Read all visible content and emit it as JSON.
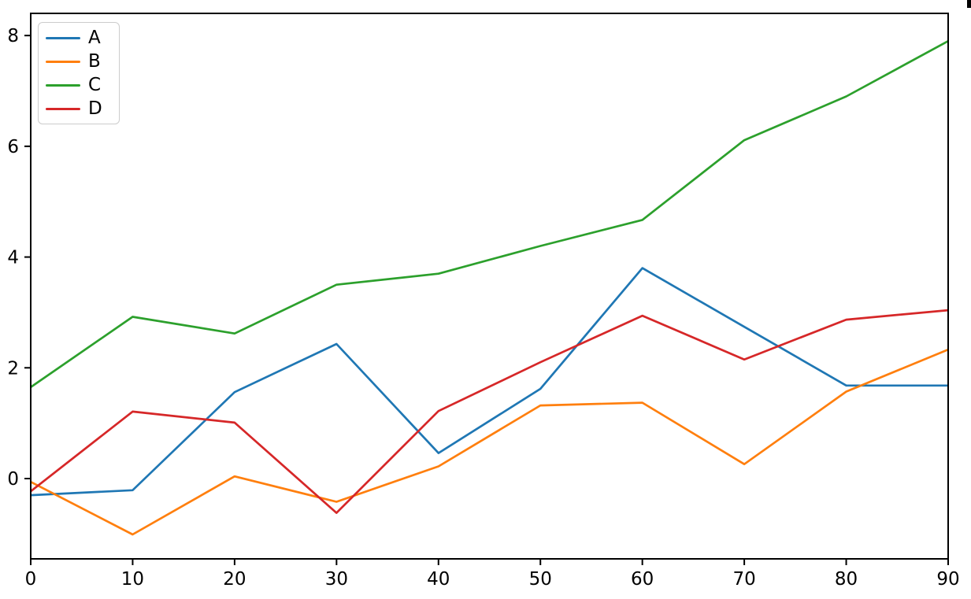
{
  "figure": {
    "background": "#ffffff"
  },
  "chart_data": {
    "type": "line",
    "title": "",
    "xlabel": "",
    "ylabel": "",
    "x": [
      0,
      10,
      20,
      30,
      40,
      50,
      60,
      70,
      80,
      90
    ],
    "series": [
      {
        "name": "A",
        "color": "#1f77b4",
        "values": [
          -0.3,
          -0.21,
          1.56,
          2.43,
          0.46,
          1.62,
          3.8,
          2.74,
          1.68,
          1.68
        ]
      },
      {
        "name": "B",
        "color": "#ff7f0e",
        "values": [
          -0.06,
          -1.01,
          0.04,
          -0.42,
          0.22,
          1.32,
          1.37,
          0.26,
          1.57,
          2.33
        ]
      },
      {
        "name": "C",
        "color": "#2ca02c",
        "values": [
          1.65,
          2.92,
          2.62,
          3.5,
          3.7,
          4.2,
          4.67,
          6.11,
          6.9,
          7.9
        ]
      },
      {
        "name": "D",
        "color": "#d62728",
        "values": [
          -0.23,
          1.21,
          1.01,
          -0.62,
          1.22,
          2.1,
          2.94,
          2.15,
          2.87,
          3.04
        ]
      }
    ],
    "xlim": [
      0,
      90
    ],
    "ylim": [
      -1.45,
      8.4
    ],
    "x_ticks": [
      0,
      10,
      20,
      30,
      40,
      50,
      60,
      70,
      80,
      90
    ],
    "y_ticks": [
      0,
      2,
      4,
      6,
      8
    ],
    "x_tick_labels": [
      "0",
      "10",
      "20",
      "30",
      "40",
      "50",
      "60",
      "70",
      "80",
      "90"
    ],
    "y_tick_labels": [
      "0",
      "2",
      "4",
      "6",
      "8"
    ],
    "grid": false,
    "legend_position": "upper-left",
    "legend_entries": [
      "A",
      "B",
      "C",
      "D"
    ]
  },
  "colors": {
    "spine": "#000000",
    "tick": "#000000",
    "tick_label": "#000000",
    "legend_border": "#cccccc",
    "legend_background": "#ffffff",
    "artifact": "#000000"
  }
}
